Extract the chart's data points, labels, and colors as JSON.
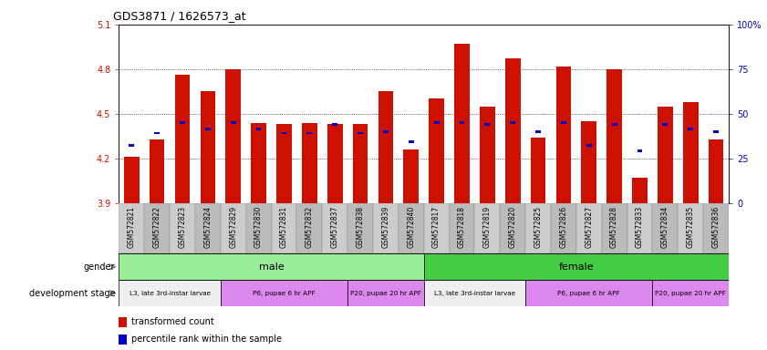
{
  "title": "GDS3871 / 1626573_at",
  "samples": [
    "GSM572821",
    "GSM572822",
    "GSM572823",
    "GSM572824",
    "GSM572829",
    "GSM572830",
    "GSM572831",
    "GSM572832",
    "GSM572837",
    "GSM572838",
    "GSM572839",
    "GSM572840",
    "GSM572817",
    "GSM572818",
    "GSM572819",
    "GSM572820",
    "GSM572825",
    "GSM572826",
    "GSM572827",
    "GSM572828",
    "GSM572833",
    "GSM572834",
    "GSM572835",
    "GSM572836"
  ],
  "red_values": [
    4.21,
    4.33,
    4.76,
    4.65,
    4.8,
    4.44,
    4.43,
    4.44,
    4.43,
    4.43,
    4.65,
    4.26,
    4.6,
    4.97,
    4.55,
    4.87,
    4.34,
    4.82,
    4.45,
    4.8,
    4.07,
    4.55,
    4.58,
    4.33
  ],
  "blue_values": [
    4.29,
    4.37,
    4.44,
    4.4,
    4.44,
    4.4,
    4.37,
    4.37,
    4.43,
    4.37,
    4.38,
    4.31,
    4.44,
    4.44,
    4.43,
    4.44,
    4.38,
    4.44,
    4.29,
    4.43,
    4.25,
    4.43,
    4.4,
    4.38
  ],
  "ylim_left": [
    3.9,
    5.1
  ],
  "ylim_right": [
    0,
    100
  ],
  "yticks_left": [
    3.9,
    4.2,
    4.5,
    4.8,
    5.1
  ],
  "yticks_right": [
    0,
    25,
    50,
    75,
    100
  ],
  "bar_bottom": 3.9,
  "red_color": "#cc1100",
  "blue_color": "#0000cc",
  "green_color_light": "#99ee99",
  "green_color_dark": "#44cc44",
  "bar_width": 0.6,
  "dev_color_white": "#f0eeff",
  "dev_color_pink": "#dd88ee",
  "tick_bg_light": "#cccccc",
  "tick_bg_dark": "#aaaaaa",
  "dev_stages": [
    {
      "label": "L3, late 3rd-instar larvae",
      "start": 0,
      "end": 4,
      "color": "#f0eeff"
    },
    {
      "label": "P6, pupae 6 hr APF",
      "start": 4,
      "end": 9,
      "color": "#dd88ee"
    },
    {
      "label": "P20, pupae 20 hr APF",
      "start": 9,
      "end": 12,
      "color": "#dd88ee"
    },
    {
      "label": "L3, late 3rd-instar larvae",
      "start": 12,
      "end": 16,
      "color": "#f0eeff"
    },
    {
      "label": "P6, pupae 6 hr APF",
      "start": 16,
      "end": 21,
      "color": "#dd88ee"
    },
    {
      "label": "P20, pupae 20 hr APF",
      "start": 21,
      "end": 24,
      "color": "#dd88ee"
    }
  ]
}
